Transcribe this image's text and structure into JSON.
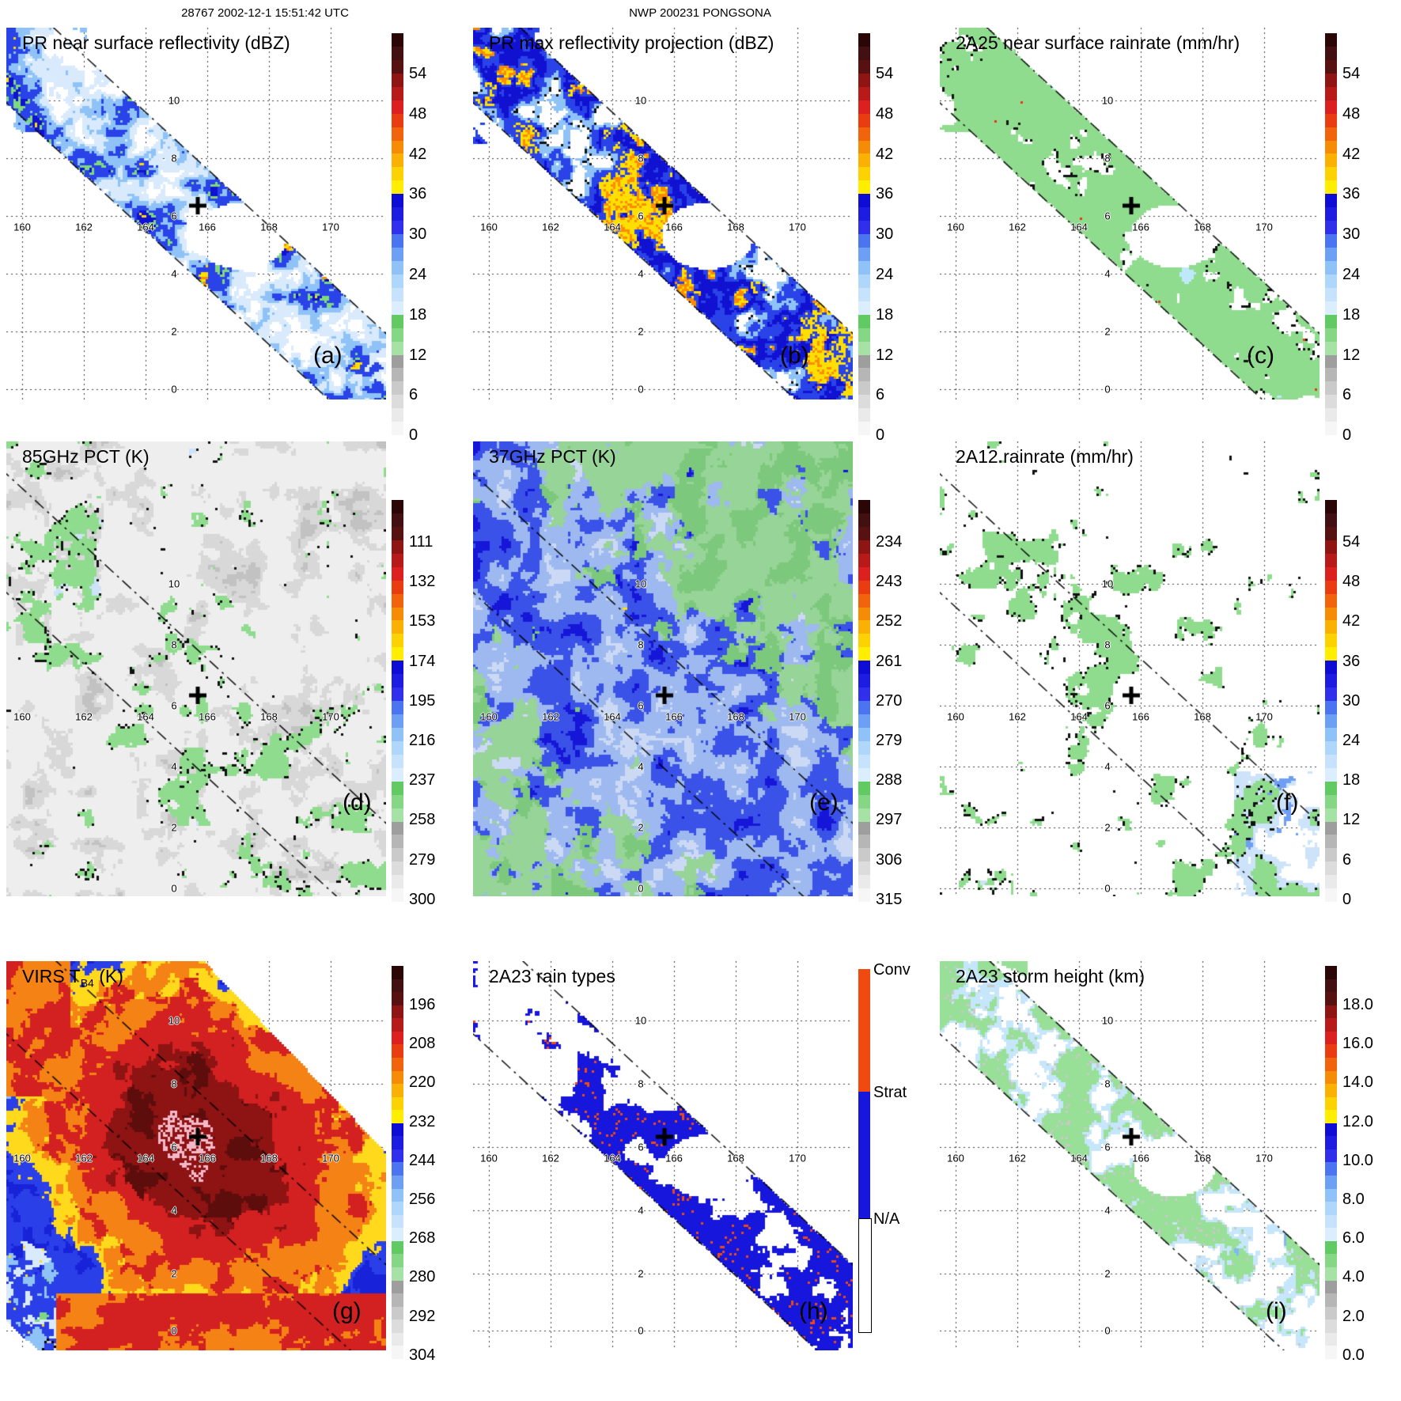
{
  "header": {
    "left_title": "28767 2002-12-1 15:51:42 UTC",
    "center_title": "NWP 200231 PONGSONA"
  },
  "axes": {
    "lon_labels": [
      "160",
      "162",
      "164",
      "166",
      "168",
      "170"
    ],
    "lat_labels": [
      "10",
      "8",
      "6",
      "4",
      "2",
      "0"
    ]
  },
  "storm_marker": {
    "symbol": "+",
    "color": "#000000"
  },
  "palettes": {
    "rainbow": [
      "#2b0606",
      "#421010",
      "#581111",
      "#8f1414",
      "#b81a1a",
      "#dc1f1f",
      "#e93c10",
      "#f1640b",
      "#f68b06",
      "#fbb004",
      "#fdd202",
      "#ffee00",
      "#0d0dd6",
      "#1d1de2",
      "#3030ec",
      "#4a74f0",
      "#6d9ff5",
      "#8fc2f9",
      "#aed7fb",
      "#c6e2fc",
      "#dbeefd",
      "#62ca62",
      "#85d685",
      "#a6e2a6",
      "#9e9e9e",
      "#b6b6b6",
      "#cacaca",
      "#dcdcdc",
      "#eaeaea",
      "#f6f6f6"
    ],
    "categorical_rain": [
      {
        "label": "Conv",
        "color": "#f04a10"
      },
      {
        "label": "Strat",
        "color": "#1616dd"
      },
      {
        "label": "N/A",
        "color": "#ffffff"
      }
    ]
  },
  "panels": [
    {
      "letter": "(a)",
      "title": "PR near surface reflectivity (dBZ)",
      "style": "a",
      "colorbar": {
        "palette": "rainbow",
        "ticks": [
          "54",
          "48",
          "42",
          "36",
          "30",
          "24",
          "18",
          "12",
          "6",
          "0"
        ]
      },
      "colors": {
        "pale": "#d8eafc",
        "light": "#8fc3f8",
        "mid": "#2a43e8",
        "dark": "#1111d2",
        "green": "#7ed87e",
        "yellow": "#ffdf00",
        "orange": "#ff8b00"
      }
    },
    {
      "letter": "(b)",
      "title": "PR max reflectivity projection (dBZ)",
      "style": "b",
      "colorbar": {
        "palette": "rainbow",
        "ticks": [
          "54",
          "48",
          "42",
          "36",
          "30",
          "24",
          "18",
          "12",
          "6",
          "0"
        ]
      },
      "colors": {
        "pale": "#d8eafc",
        "light": "#8fc3f8",
        "mid": "#2a43e8",
        "dark": "#1111d2",
        "green": "#7ed87e",
        "yellow": "#ffdf00",
        "orange": "#ff8b00",
        "edge": "#111111"
      }
    },
    {
      "letter": "(c)",
      "title": "2A25 near surface rainrate (mm/hr)",
      "style": "c",
      "colorbar": {
        "palette": "rainbow",
        "ticks": [
          "54",
          "48",
          "42",
          "36",
          "30",
          "24",
          "18",
          "12",
          "6",
          "0"
        ]
      },
      "colors": {
        "base": "#8fdc8f",
        "pale": "#bfe9fb",
        "light": "#6fb2f5",
        "mid": "#2a43e8",
        "edge": "#111111",
        "red": "#e83515"
      }
    },
    {
      "letter": "(d)",
      "title": "85GHz PCT (K)",
      "style": "d",
      "colorbar": {
        "palette": "rainbow",
        "ticks": [
          "111",
          "132",
          "153",
          "174",
          "195",
          "216",
          "237",
          "258",
          "279",
          "300"
        ]
      },
      "colors": {
        "bg": "#eeeeee",
        "streak": "#d8d8d8",
        "dark_streak": "#c2c2c2",
        "green": "#8fdc8f",
        "pale": "#cde3fa",
        "blue": "#5b8ef2",
        "edge": "#111111"
      }
    },
    {
      "letter": "(e)",
      "title": "37GHz PCT (K)",
      "style": "e",
      "colorbar": {
        "palette": "rainbow",
        "ticks": [
          "234",
          "243",
          "252",
          "261",
          "270",
          "279",
          "288",
          "297",
          "306",
          "315"
        ]
      },
      "colors": {
        "green": "#7cc87c",
        "green2": "#97d497",
        "pale": "#ccd9f5",
        "light": "#9db9ef",
        "mid": "#3a52e8",
        "dark": "#1616d8",
        "yellow": "#ffe000"
      }
    },
    {
      "letter": "(f)",
      "title": "2A12 rainrate (mm/hr)",
      "style": "f",
      "colorbar": {
        "palette": "rainbow",
        "ticks": [
          "54",
          "48",
          "42",
          "36",
          "30",
          "24",
          "18",
          "12",
          "6",
          "0"
        ]
      },
      "colors": {
        "green": "#8fdc8f",
        "pale": "#cde3fa",
        "blue": "#6f9ff4",
        "edge": "#111111"
      }
    },
    {
      "letter": "(g)",
      "title": "VIRS T",
      "title_sub": "B4",
      "title_tail": " (K)",
      "style": "g",
      "colorbar": {
        "palette": "rainbow",
        "ticks": [
          "196",
          "208",
          "220",
          "232",
          "244",
          "256",
          "268",
          "280",
          "292",
          "304"
        ]
      },
      "colors": {
        "pink": "#f4b9c9",
        "core": "#8e1313",
        "dark": "#5e0d0d",
        "red": "#d32020",
        "orange": "#f58214",
        "yellow": "#ffd91c",
        "blue": "#2b3fe8",
        "mid": "#1822d8",
        "light": "#8fc3f8",
        "pale": "#d8eafc",
        "gray": "#c3c3c3",
        "green": "#7ed87e",
        "edge": "#000000"
      }
    },
    {
      "letter": "(h)",
      "title": "2A23 rain types",
      "style": "h",
      "colorbar": {
        "palette": "categorical_rain"
      },
      "colors": {
        "conv": "#f04a10",
        "strat": "#1616dd"
      }
    },
    {
      "letter": "(i)",
      "title": "2A23 storm height (km)",
      "style": "i",
      "colorbar": {
        "palette": "rainbow",
        "ticks": [
          "18.0",
          "16.0",
          "14.0",
          "12.0",
          "10.0",
          "8.0",
          "6.0",
          "4.0",
          "2.0",
          "0.0"
        ]
      },
      "colors": {
        "green": "#98df98",
        "pale": "#c5e6fb",
        "light": "#7fb8f5",
        "gray": "#c9c9c9",
        "mid": "#3b5bee"
      }
    }
  ],
  "chart_data": [
    {
      "panel": "a",
      "type": "heatmap",
      "title": "PR near surface reflectivity (dBZ)",
      "units": "dBZ",
      "colorbar_ticks": [
        54,
        48,
        42,
        36,
        30,
        24,
        18,
        12,
        6,
        0
      ],
      "x_ticks": [
        160,
        162,
        164,
        166,
        168,
        170
      ],
      "y_ticks": [
        10,
        8,
        6,
        4,
        2,
        0
      ],
      "features": "narrow diagonal PR swath, blue reflectivity speckle with yellow-orange convective cells, white eye near 166E 6N marked with +"
    },
    {
      "panel": "b",
      "type": "heatmap",
      "title": "PR max reflectivity projection (dBZ)",
      "units": "dBZ",
      "colorbar_ticks": [
        54,
        48,
        42,
        36,
        30,
        24,
        18,
        12,
        6,
        0
      ],
      "x_ticks": [
        160,
        162,
        164,
        166,
        168,
        170
      ],
      "y_ticks": [
        10,
        8,
        6,
        4,
        2,
        0
      ],
      "features": "same swath as (a) with stronger yellow/orange cores and black contour outlines"
    },
    {
      "panel": "c",
      "type": "heatmap",
      "title": "2A25 near surface rainrate (mm/hr)",
      "units": "mm/hr",
      "colorbar_ticks": [
        54,
        48,
        42,
        36,
        30,
        24,
        18,
        12,
        6,
        0
      ],
      "x_ticks": [
        160,
        162,
        164,
        166,
        168,
        170
      ],
      "y_ticks": [
        10,
        8,
        6,
        4,
        2,
        0
      ],
      "features": "green light-rain field with sparse blue speckle inside black-outlined swath, white eye near 166E 6N"
    },
    {
      "panel": "d",
      "type": "heatmap",
      "title": "85GHz PCT (K)",
      "units": "K",
      "colorbar_ticks": [
        111,
        132,
        153,
        174,
        195,
        216,
        237,
        258,
        279,
        300
      ],
      "x_ticks": [
        160,
        162,
        164,
        166,
        168,
        170
      ],
      "y_ticks": [
        10,
        8,
        6,
        4,
        2,
        0
      ],
      "features": "wide TMI swath, pale gray background with green ice-scattering patches and blue cores along storm band"
    },
    {
      "panel": "e",
      "type": "heatmap",
      "title": "37GHz PCT (K)",
      "units": "K",
      "colorbar_ticks": [
        234,
        243,
        252,
        261,
        270,
        279,
        288,
        297,
        306,
        315
      ],
      "x_ticks": [
        160,
        162,
        164,
        166,
        168,
        170
      ],
      "y_ticks": [
        10,
        8,
        6,
        4,
        2,
        0
      ],
      "features": "green warm background, large blue emission region along band with yellow cells near 167-169E 6-7N"
    },
    {
      "panel": "f",
      "type": "heatmap",
      "title": "2A12 rainrate (mm/hr)",
      "units": "mm/hr",
      "colorbar_ticks": [
        54,
        48,
        42,
        36,
        30,
        24,
        18,
        12,
        6,
        0
      ],
      "x_ticks": [
        160,
        162,
        164,
        166,
        168,
        170
      ],
      "y_ticks": [
        10,
        8,
        6,
        4,
        2,
        0
      ],
      "features": "scattered green rain blobs with light-blue speckle over white background, rain-free hole near 166-167E 5-6N"
    },
    {
      "panel": "g",
      "type": "heatmap",
      "title": "VIRS TB4 (K)",
      "units": "K",
      "colorbar_ticks": [
        196,
        208,
        220,
        232,
        244,
        256,
        268,
        280,
        292,
        304
      ],
      "x_ticks": [
        160,
        162,
        164,
        166,
        168,
        170
      ],
      "y_ticks": [
        10,
        8,
        6,
        4,
        2,
        0
      ],
      "features": "full IR scene, large dark-red cold cloud shield with pink overshooting tops at center +, orange/yellow ring, blue and gray warm areas, orange band at bottom"
    },
    {
      "panel": "h",
      "type": "heatmap",
      "title": "2A23 rain types",
      "categories": [
        "Conv",
        "Strat",
        "N/A"
      ],
      "x_ticks": [
        160,
        162,
        164,
        166,
        168,
        170
      ],
      "y_ticks": [
        10,
        8,
        6,
        4,
        2,
        0
      ],
      "features": "PR swath mostly blue stratiform with orange convective speckles, white N/A eye region"
    },
    {
      "panel": "i",
      "type": "heatmap",
      "title": "2A23 storm height (km)",
      "units": "km",
      "colorbar_ticks": [
        18,
        16,
        14,
        12,
        10,
        8,
        6,
        4,
        2,
        0
      ],
      "x_ticks": [
        160,
        162,
        164,
        166,
        168,
        170
      ],
      "y_ticks": [
        10,
        8,
        6,
        4,
        2,
        0
      ],
      "features": "PR swath of 4-8 km green storm heights with light-blue taller cells and gray low echoes"
    }
  ]
}
